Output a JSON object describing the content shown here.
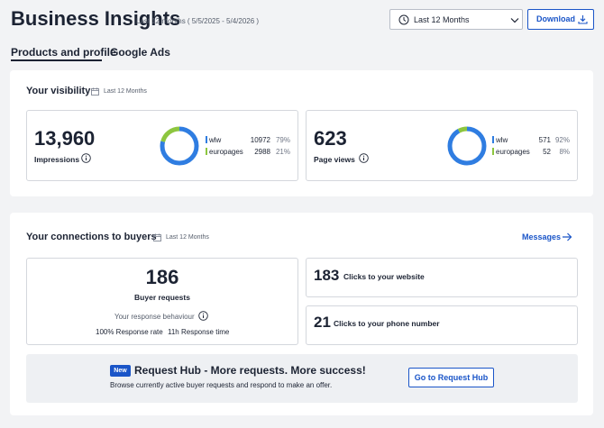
{
  "header": {
    "title": "Business Insights",
    "subtitle": "Last 12 months ( 5/5/2025 - 5/4/2026 )",
    "range_select": {
      "value": "Last 12 Months",
      "icon": "clock-icon"
    },
    "download_label": "Download"
  },
  "tabs": [
    {
      "label": "Products and profile",
      "active": true
    },
    {
      "label": "Google Ads",
      "active": false
    }
  ],
  "visibility": {
    "title": "Your visibility",
    "period": "Last 12 Months",
    "impressions": {
      "value": "13,960",
      "label": "Impressions",
      "breakdown": [
        {
          "name": "wlw",
          "value": "10972",
          "pct": "79%",
          "fraction": 0.79,
          "color": "#2f7de1"
        },
        {
          "name": "europages",
          "value": "2988",
          "pct": "21%",
          "fraction": 0.21,
          "color": "#8dc63f"
        }
      ]
    },
    "page_views": {
      "value": "623",
      "label": "Page views",
      "breakdown": [
        {
          "name": "wlw",
          "value": "571",
          "pct": "92%",
          "fraction": 0.92,
          "color": "#2f7de1"
        },
        {
          "name": "europages",
          "value": "52",
          "pct": "8%",
          "fraction": 0.08,
          "color": "#8dc63f"
        }
      ]
    }
  },
  "connections": {
    "title": "Your connections to buyers",
    "period": "Last 12 Months",
    "messages_label": "Messages",
    "buyer_requests": {
      "value": "186",
      "label": "Buyer requests",
      "behaviour_label": "Your response behaviour",
      "response_rate": "100% Response rate",
      "response_time": "11h Response time"
    },
    "website_clicks": {
      "value": "183",
      "label": "Clicks to your website"
    },
    "phone_clicks": {
      "value": "21",
      "label": "Clicks to your phone number"
    }
  },
  "promo": {
    "badge": "New",
    "title": "Request Hub - More requests. More success!",
    "text": "Browse currently active buyer requests and respond to make an offer.",
    "button_label": "Go to Request Hub"
  }
}
